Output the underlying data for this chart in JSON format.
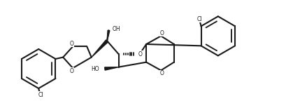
{
  "background_color": "#ffffff",
  "line_color": "#1a1a1a",
  "line_width": 1.5,
  "figsize": [
    4.09,
    1.54
  ],
  "dpi": 100,
  "xlim": [
    0,
    82
  ],
  "ylim": [
    0,
    33
  ]
}
